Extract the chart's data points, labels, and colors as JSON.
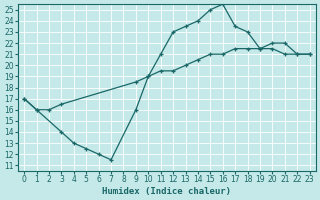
{
  "xlabel": "Humidex (Indice chaleur)",
  "bg_color": "#c5e8e8",
  "line_color": "#1a6868",
  "xlim": [
    -0.5,
    23.5
  ],
  "ylim": [
    10.5,
    25.5
  ],
  "xticks": [
    0,
    1,
    2,
    3,
    4,
    5,
    6,
    7,
    8,
    9,
    10,
    11,
    12,
    13,
    14,
    15,
    16,
    17,
    18,
    19,
    20,
    21,
    22,
    23
  ],
  "yticks": [
    11,
    12,
    13,
    14,
    15,
    16,
    17,
    18,
    19,
    20,
    21,
    22,
    23,
    24,
    25
  ],
  "series1_x": [
    0,
    1,
    3,
    4,
    5,
    6,
    7,
    9,
    10,
    11,
    12,
    13,
    14,
    15,
    16,
    17,
    18,
    19,
    20,
    21,
    22,
    23
  ],
  "series1_y": [
    17,
    16,
    14,
    13,
    12.5,
    12,
    11.5,
    16,
    19,
    21,
    23,
    23.5,
    24,
    25,
    25.5,
    23.5,
    23,
    21.5,
    22,
    22,
    21,
    21
  ],
  "series2_x": [
    0,
    1,
    2,
    3,
    9,
    10,
    11,
    12,
    13,
    14,
    15,
    16,
    17,
    18,
    19,
    20,
    21,
    22,
    23
  ],
  "series2_y": [
    17,
    16,
    16,
    16.5,
    18.5,
    19,
    19.5,
    19.5,
    20,
    20.5,
    21,
    21,
    21.5,
    21.5,
    21.5,
    21.5,
    21,
    21,
    21
  ],
  "tick_fontsize": 5.5,
  "xlabel_fontsize": 6.5
}
